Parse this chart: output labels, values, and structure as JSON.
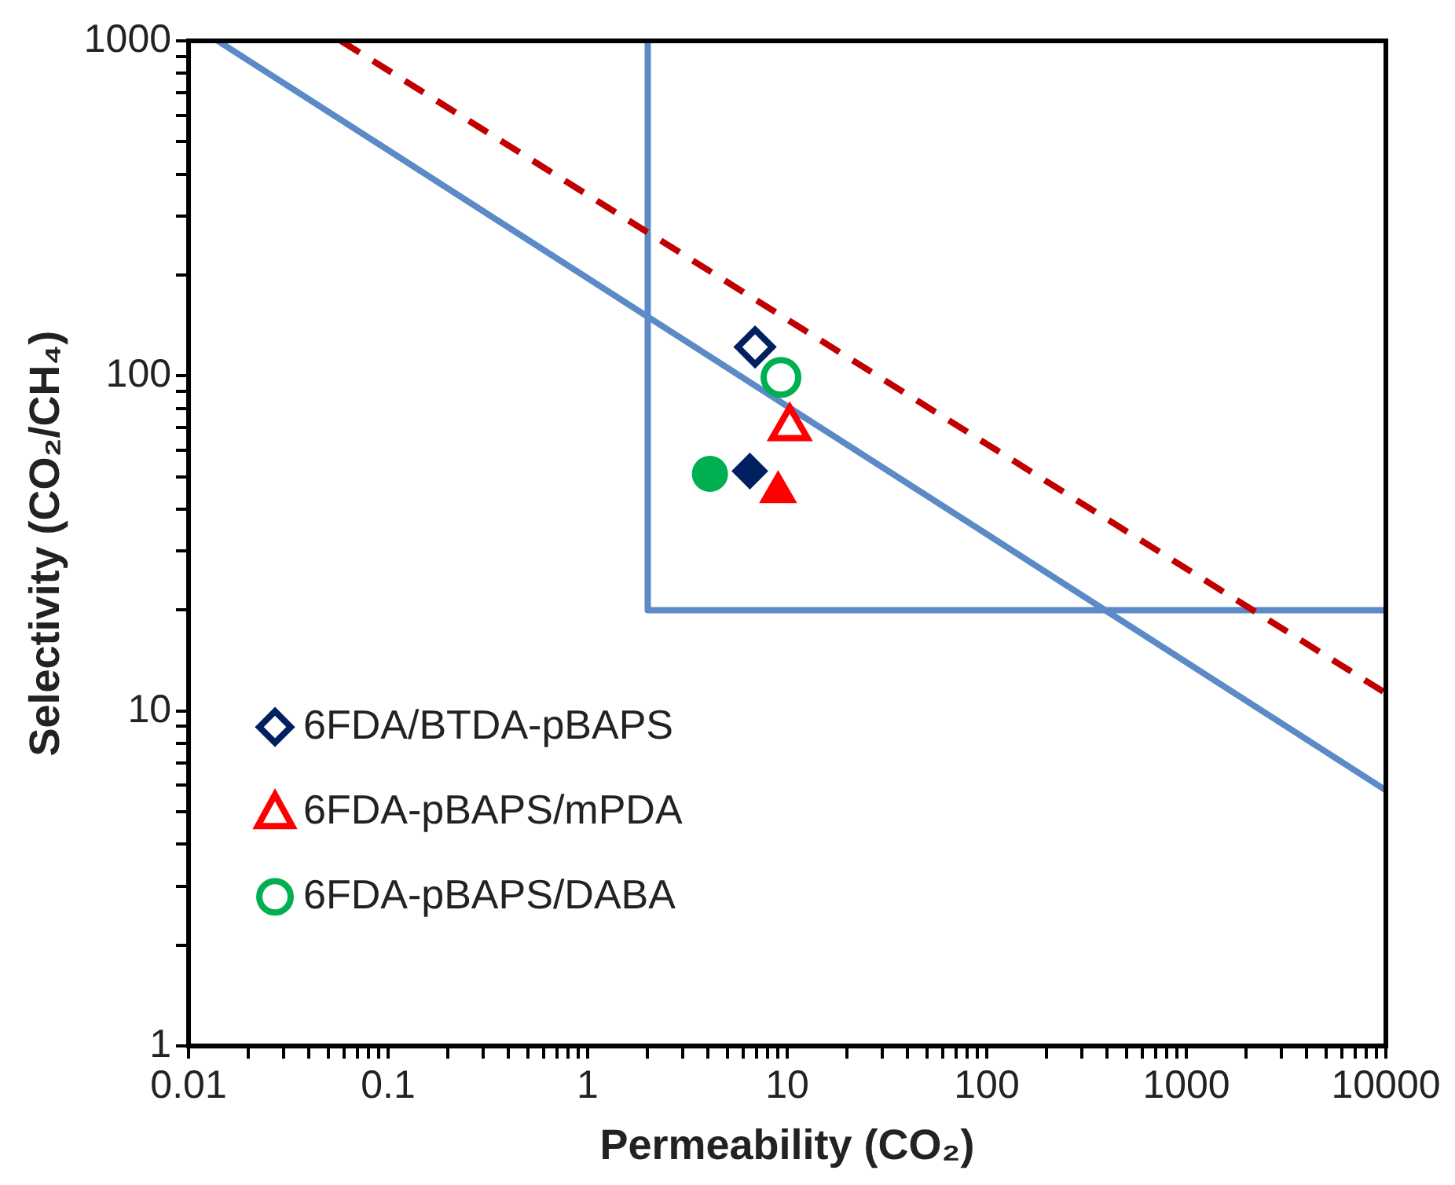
{
  "chart_data": {
    "type": "scatter",
    "xlabel": "Permeability (CO₂)",
    "ylabel": "Selectivity (CO₂/CH₄)",
    "log": "xy",
    "grid": false,
    "legend": "bottom left",
    "xlim": [
      0.01,
      10000
    ],
    "ylim": [
      1,
      1000
    ],
    "xticks": [
      0.01,
      {
        "value": 0.02,
        "label": null
      },
      {
        "value": 0.03,
        "label": null
      },
      {
        "value": 0.04,
        "label": null
      },
      {
        "value": 0.05,
        "label": null
      },
      {
        "value": 0.06,
        "label": null
      },
      {
        "value": 0.07,
        "label": null
      },
      {
        "value": 0.08,
        "label": null
      },
      {
        "value": 0.09,
        "label": null
      },
      0.1,
      {
        "value": 0.2,
        "label": null
      },
      {
        "value": 0.3,
        "label": null
      },
      {
        "value": 0.4,
        "label": null
      },
      {
        "value": 0.5,
        "label": null
      },
      {
        "value": 0.6,
        "label": null
      },
      {
        "value": 0.7,
        "label": null
      },
      {
        "value": 0.8,
        "label": null
      },
      {
        "value": 0.9,
        "label": null
      },
      1,
      {
        "value": 2,
        "label": null
      },
      {
        "value": 3,
        "label": null
      },
      {
        "value": 4,
        "label": null
      },
      {
        "value": 5,
        "label": null
      },
      {
        "value": 6,
        "label": null
      },
      {
        "value": 7,
        "label": null
      },
      {
        "value": 8,
        "label": null
      },
      {
        "value": 9,
        "label": null
      },
      10,
      {
        "value": 20,
        "label": null
      },
      {
        "value": 30,
        "label": null
      },
      {
        "value": 40,
        "label": null
      },
      {
        "value": 50,
        "label": null
      },
      {
        "value": 60,
        "label": null
      },
      {
        "value": 70,
        "label": null
      },
      {
        "value": 80,
        "label": null
      },
      {
        "value": 90,
        "label": null
      },
      100,
      {
        "value": 200,
        "label": null
      },
      {
        "value": 300,
        "label": null
      },
      {
        "value": 400,
        "label": null
      },
      {
        "value": 500,
        "label": null
      },
      {
        "value": 600,
        "label": null
      },
      {
        "value": 700,
        "label": null
      },
      {
        "value": 800,
        "label": null
      },
      {
        "value": 900,
        "label": null
      },
      1000,
      {
        "value": 2000,
        "label": null
      },
      {
        "value": 3000,
        "label": null
      },
      {
        "value": 4000,
        "label": null
      },
      {
        "value": 5000,
        "label": null
      },
      {
        "value": 6000,
        "label": null
      },
      {
        "value": 7000,
        "label": null
      },
      {
        "value": 8000,
        "label": null
      },
      {
        "value": 9000,
        "label": null
      },
      10000
    ],
    "yticks": [
      1,
      {
        "value": 2,
        "label": null
      },
      {
        "value": 3,
        "label": null
      },
      {
        "value": 4,
        "label": null
      },
      {
        "value": 5,
        "label": null
      },
      {
        "value": 6,
        "label": null
      },
      {
        "value": 7,
        "label": null
      },
      {
        "value": 8,
        "label": null
      },
      {
        "value": 9,
        "label": null
      },
      10,
      {
        "value": 20,
        "label": null
      },
      {
        "value": 30,
        "label": null
      },
      {
        "value": 40,
        "label": null
      },
      {
        "value": 50,
        "label": null
      },
      {
        "value": 60,
        "label": null
      },
      {
        "value": 70,
        "label": null
      },
      {
        "value": 80,
        "label": null
      },
      {
        "value": 90,
        "label": null
      },
      100,
      {
        "value": 200,
        "label": null
      },
      {
        "value": 300,
        "label": null
      },
      {
        "value": 400,
        "label": null
      },
      {
        "value": 500,
        "label": null
      },
      {
        "value": 600,
        "label": null
      },
      {
        "value": 700,
        "label": null
      },
      {
        "value": 800,
        "label": null
      },
      {
        "value": 900,
        "label": null
      },
      1000
    ],
    "series": [
      {
        "type": "line",
        "color": "#5b8ac6",
        "line_style": "solid",
        "marker": "none",
        "x": [
          0.014,
          10000
        ],
        "values": [
          1000,
          5.8
        ]
      },
      {
        "type": "line",
        "color": "#c00000",
        "line_style": "dashed",
        "marker": "none",
        "x": [
          0.058,
          10000
        ],
        "values": [
          1000,
          11.3
        ]
      },
      {
        "type": "line",
        "color": "#5b8ac6",
        "line_style": "solid",
        "marker": "none",
        "x": [
          2,
          2,
          10000
        ],
        "values": [
          1000,
          20,
          20
        ]
      },
      {
        "name": "6FDA/BTDA-pBAPS",
        "color": "#002060",
        "marker": "diamond",
        "x": [
          6.9
        ],
        "values": [
          122
        ]
      },
      {
        "name": "6FDA-pBAPS/mPDA",
        "color": "#ff0000",
        "marker": "triangle",
        "x": [
          10.3
        ],
        "values": [
          70
        ]
      },
      {
        "name": "6FDA-pBAPS/DABA",
        "color": "#00b050",
        "marker": "circle",
        "x": [
          9.3
        ],
        "values": [
          99
        ]
      },
      {
        "color": "#002060",
        "marker": "diamond",
        "x": [
          6.5
        ],
        "values": [
          52
        ]
      },
      {
        "color": "#ff0000",
        "marker": "triangle",
        "x": [
          9.0
        ],
        "values": [
          45
        ]
      },
      {
        "color": "#00b050",
        "marker": "circle",
        "x": [
          4.1
        ],
        "values": [
          51
        ]
      }
    ]
  }
}
